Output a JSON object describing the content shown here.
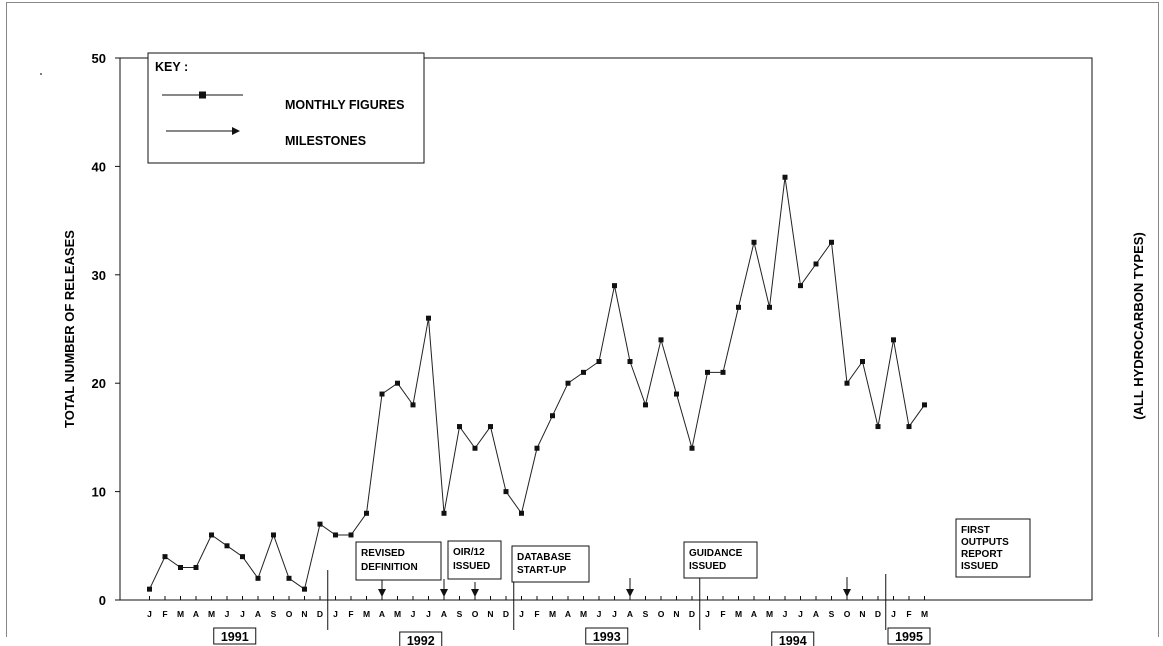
{
  "chart_data": {
    "type": "line",
    "ylabel": "TOTAL NUMBER OF RELEASES",
    "ylabel_right": "(ALL HYDROCARBON TYPES)",
    "ylim": [
      0,
      50
    ],
    "yticks": [
      0,
      10,
      20,
      30,
      40,
      50
    ],
    "grid": false,
    "legend_position": "top-left",
    "key": {
      "title": "KEY :",
      "entries": [
        {
          "label": "MONTHLY FIGURES",
          "style": "line-with-square-markers"
        },
        {
          "label": "MILESTONES",
          "style": "arrow"
        }
      ]
    },
    "x_month_labels": [
      "J",
      "F",
      "M",
      "A",
      "M",
      "J",
      "J",
      "A",
      "S",
      "O",
      "N",
      "D",
      "J",
      "F",
      "M",
      "A",
      "M",
      "J",
      "J",
      "A",
      "S",
      "O",
      "N",
      "D",
      "J",
      "F",
      "M",
      "A",
      "M",
      "J",
      "J",
      "A",
      "S",
      "O",
      "N",
      "D",
      "J",
      "F",
      "M",
      "A",
      "M",
      "J",
      "J",
      "A",
      "S",
      "O",
      "N",
      "D",
      "J",
      "F",
      "M"
    ],
    "years": [
      {
        "label": "1991",
        "start_index": 0,
        "end_index": 11
      },
      {
        "label": "1992",
        "start_index": 12,
        "end_index": 23
      },
      {
        "label": "1993",
        "start_index": 24,
        "end_index": 35
      },
      {
        "label": "1994",
        "start_index": 36,
        "end_index": 47
      },
      {
        "label": "1995",
        "start_index": 48,
        "end_index": 50
      }
    ],
    "series": [
      {
        "values": [
          1,
          4,
          3,
          3,
          6,
          5,
          4,
          2,
          6,
          2,
          1,
          7,
          6,
          6,
          8,
          19,
          20,
          18,
          26,
          8,
          16,
          14,
          16,
          10,
          8,
          14,
          17,
          20,
          21,
          22,
          29,
          22,
          18,
          24,
          19,
          14,
          21,
          21,
          27,
          33,
          27,
          39,
          29,
          31,
          33,
          20,
          22,
          16,
          24,
          16,
          18
        ]
      }
    ],
    "milestones": [
      {
        "lines": [
          "REVISED",
          "DEFINITION"
        ],
        "month_index": 15
      },
      {
        "lines": [
          "OIR/12",
          "ISSUED"
        ],
        "month_index": 19
      },
      {
        "lines": [
          "DATABASE",
          "START-UP"
        ],
        "month_index": 21
      },
      {
        "lines": [
          "GUIDANCE",
          "ISSUED"
        ],
        "month_index": 31
      },
      {
        "lines": [
          "FIRST",
          "OUTPUTS",
          "REPORT",
          "ISSUED"
        ],
        "month_index": 45
      }
    ]
  }
}
